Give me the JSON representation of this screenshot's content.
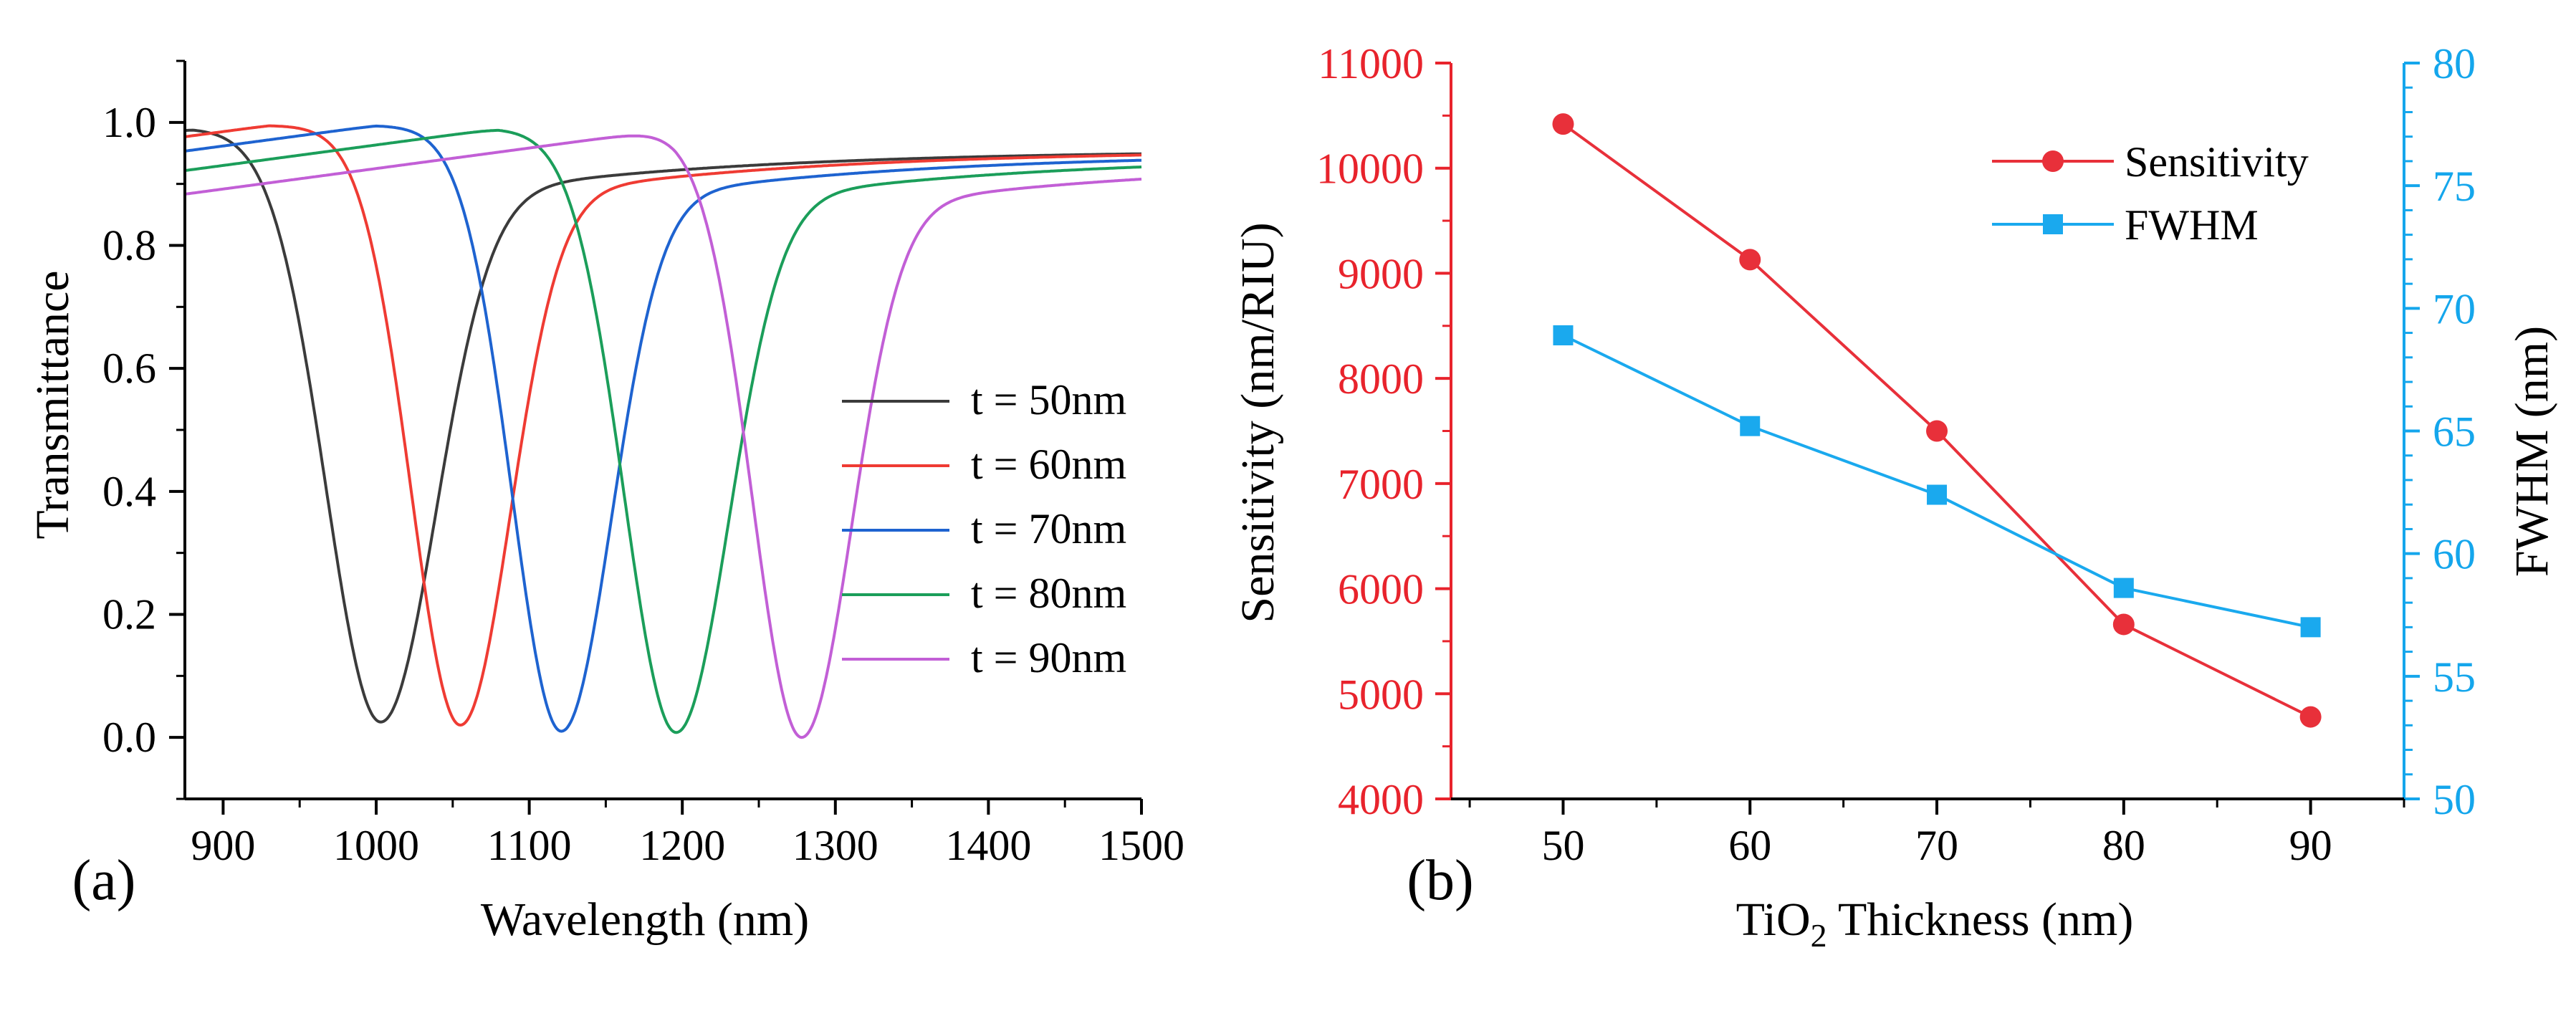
{
  "panel_labels": {
    "a": "(a)",
    "b": "(b)"
  },
  "chart_data": [
    {
      "type": "line",
      "xlabel": "Wavelength (nm)",
      "ylabel": "Transmittance",
      "xlim": [
        875,
        1500
      ],
      "ylim": [
        -0.1,
        1.1
      ],
      "xticks": [
        900,
        1000,
        1100,
        1200,
        1300,
        1400,
        1500
      ],
      "yticks": [
        0.0,
        0.2,
        0.4,
        0.6,
        0.8,
        1.0
      ],
      "ytick_labels": [
        "0.0",
        "0.2",
        "0.4",
        "0.6",
        "0.8",
        "1.0"
      ],
      "legend_position": "center-right",
      "series": [
        {
          "name": "t = 50nm",
          "color": "#3b3b3b",
          "dip_center": 1003,
          "dip_min": 0.025,
          "baseline": 0.955,
          "width": 42,
          "peak_value": 0.99,
          "plateau_end": 880
        },
        {
          "name": "t = 60nm",
          "color": "#ef3b33",
          "dip_center": 1055,
          "dip_min": 0.02,
          "baseline": 0.955,
          "width": 38,
          "peak_value": 0.995,
          "plateau_end": 930
        },
        {
          "name": "t = 70nm",
          "color": "#1e63d0",
          "dip_center": 1121,
          "dip_min": 0.01,
          "baseline": 0.95,
          "width": 38,
          "peak_value": 0.995,
          "plateau_end": 1000
        },
        {
          "name": "t = 80nm",
          "color": "#1b9e5a",
          "dip_center": 1196,
          "dip_min": 0.008,
          "baseline": 0.945,
          "width": 40,
          "peak_value": 0.99,
          "plateau_end": 1080
        },
        {
          "name": "t = 90nm",
          "color": "#c25fd6",
          "dip_center": 1278,
          "dip_min": 0.0,
          "baseline": 0.935,
          "width": 38,
          "peak_value": 0.99,
          "plateau_end": 1195
        }
      ]
    },
    {
      "type": "line",
      "xlabel_main": "TiO",
      "xlabel_sub": "2",
      "xlabel_rest": " Thickness (nm)",
      "ylabel_left": "Sensitivity (nm/RIU)",
      "ylabel_right": "FWHM (nm)",
      "categories": [
        50,
        60,
        70,
        80,
        90
      ],
      "x_tick_labels": [
        "50",
        "60",
        "70",
        "80",
        "90"
      ],
      "xlim": [
        44,
        95
      ],
      "ylim_left": [
        4000,
        11000
      ],
      "ylim_right": [
        50,
        80
      ],
      "yticks_left": [
        "4000",
        "5000",
        "6000",
        "7000",
        "8000",
        "9000",
        "10000",
        "11000"
      ],
      "yticks_right": [
        "50",
        "55",
        "60",
        "65",
        "70",
        "75",
        "80"
      ],
      "legend_position": "top-right",
      "left_axis_color": "#e8232c",
      "right_axis_color": "#14a6ec",
      "series": [
        {
          "name": "Sensitivity",
          "axis": "left",
          "marker": "circle",
          "color": "#e8303a",
          "values": [
            10420,
            9130,
            7500,
            5660,
            4780
          ]
        },
        {
          "name": "FWHM",
          "axis": "right",
          "marker": "square",
          "color": "#1aa9ee",
          "values": [
            68.9,
            65.2,
            62.4,
            58.6,
            57.0
          ]
        }
      ]
    }
  ]
}
